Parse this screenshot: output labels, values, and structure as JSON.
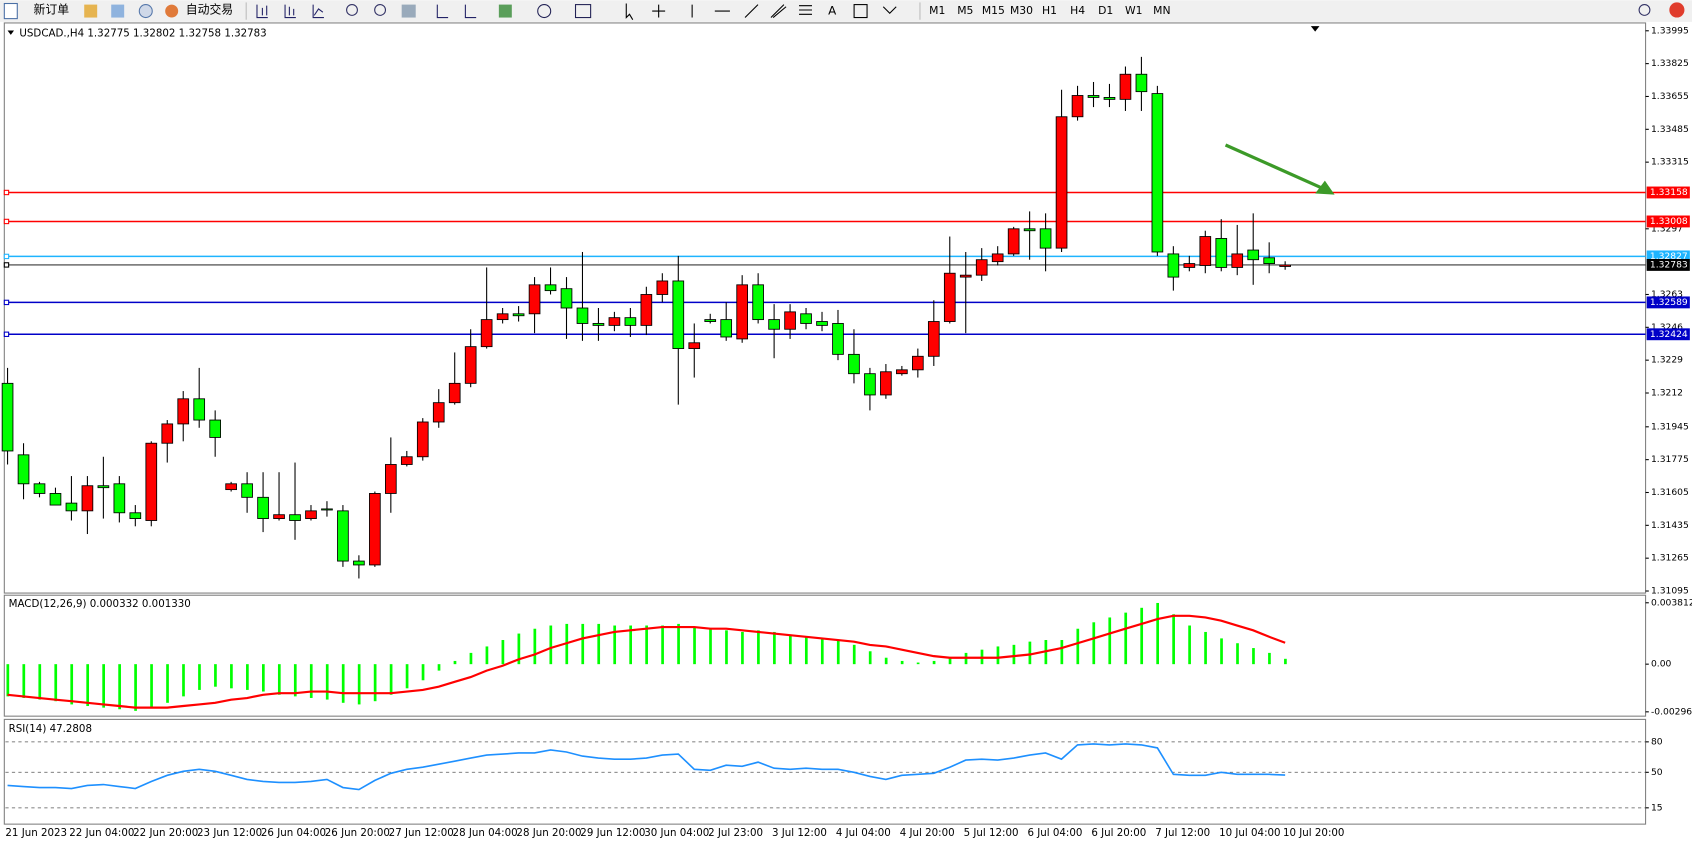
{
  "toolbar": {
    "new_order": "新订单",
    "auto_trading": "自动交易",
    "timeframes": [
      "M1",
      "M5",
      "M15",
      "M30",
      "H1",
      "H4",
      "D1",
      "W1",
      "MN"
    ]
  },
  "chart_data": [
    {
      "type": "candlestick",
      "title": "USDCAD.,H4  1.32775 1.32802 1.32758 1.32783",
      "categories": [
        "21 Jun 2023",
        null,
        null,
        null,
        "22 Jun 04:00",
        null,
        null,
        null,
        "22 Jun 20:00",
        null,
        null,
        null,
        "23 Jun 12:00",
        null,
        null,
        null,
        "26 Jun 04:00",
        null,
        null,
        null,
        "26 Jun 20:00",
        null,
        null,
        null,
        "27 Jun 12:00",
        null,
        null,
        null,
        "28 Jun 04:00",
        null,
        null,
        null,
        "28 Jun 20:00",
        null,
        null,
        null,
        "29 Jun 12:00",
        null,
        null,
        null,
        "30 Jun 04:00",
        null,
        null,
        null,
        "2 Jul 23:00",
        null,
        null,
        null,
        "3 Jul 12:00",
        null,
        null,
        null,
        "4 Jul 04:00",
        null,
        null,
        null,
        "4 Jul 20:00",
        null,
        null,
        null,
        "5 Jul 12:00",
        null,
        null,
        null,
        "6 Jul 04:00",
        null,
        null,
        null,
        "6 Jul 20:00",
        null,
        null,
        null,
        "7 Jul 12:00",
        null,
        null,
        null,
        "10 Jul 04:00",
        null,
        null,
        null,
        "10 Jul 20:00"
      ],
      "open": [
        1.3217,
        1.318,
        1.3165,
        1.316,
        1.3155,
        1.3151,
        1.3164,
        1.3165,
        1.315,
        1.3146,
        1.3186,
        1.3196,
        1.3209,
        1.3198,
        1.3162,
        1.3165,
        1.3158,
        1.3147,
        1.3149,
        1.3147,
        1.3152,
        1.3151,
        1.3125,
        1.3123,
        1.316,
        1.3175,
        1.3179,
        1.3197,
        1.3207,
        1.3217,
        1.3236,
        1.325,
        1.3253,
        1.3253,
        1.3268,
        1.3266,
        1.3256,
        1.3248,
        1.3247,
        1.3251,
        1.3247,
        1.3263,
        1.327,
        1.3235,
        1.325,
        1.325,
        1.324,
        1.3268,
        1.325,
        1.3245,
        1.3253,
        1.3249,
        1.3248,
        1.3232,
        1.3222,
        1.3211,
        1.3222,
        1.3224,
        1.3231,
        1.3249,
        1.3272,
        1.3273,
        1.328,
        1.3284,
        1.3297,
        1.3297,
        1.3287,
        1.3355,
        1.3366,
        1.3365,
        1.3364,
        1.3377,
        1.3367,
        1.3284,
        1.3277,
        1.3278,
        1.3292,
        1.3277,
        1.3286,
        1.3282,
        1.32775
      ],
      "high": [
        1.3225,
        1.3186,
        1.3166,
        1.3163,
        1.3169,
        1.3169,
        1.3179,
        1.3169,
        1.3154,
        1.3187,
        1.3198,
        1.3213,
        1.3225,
        1.3203,
        1.3166,
        1.3171,
        1.3171,
        1.3171,
        1.3176,
        1.3154,
        1.3156,
        1.3154,
        1.3128,
        1.3161,
        1.3189,
        1.3182,
        1.3199,
        1.3214,
        1.3233,
        1.3245,
        1.3277,
        1.3256,
        1.3257,
        1.3272,
        1.3277,
        1.3272,
        1.3285,
        1.3256,
        1.3254,
        1.3256,
        1.3267,
        1.3274,
        1.3283,
        1.3248,
        1.3253,
        1.3259,
        1.3273,
        1.3274,
        1.3258,
        1.3258,
        1.3256,
        1.3254,
        1.3255,
        1.3245,
        1.3225,
        1.3227,
        1.3226,
        1.3235,
        1.326,
        1.3293,
        1.3285,
        1.3287,
        1.3288,
        1.3298,
        1.3306,
        1.3305,
        1.3369,
        1.3371,
        1.3373,
        1.3372,
        1.3381,
        1.3386,
        1.3371,
        1.3288,
        1.3283,
        1.3296,
        1.3302,
        1.3299,
        1.3305,
        1.329,
        1.32802
      ],
      "low": [
        1.3175,
        1.3157,
        1.3158,
        1.3154,
        1.3146,
        1.3139,
        1.3147,
        1.3145,
        1.3143,
        1.3143,
        1.3176,
        1.3187,
        1.3194,
        1.3179,
        1.3161,
        1.315,
        1.314,
        1.3146,
        1.3136,
        1.3146,
        1.3148,
        1.3122,
        1.3116,
        1.3122,
        1.315,
        1.3174,
        1.3177,
        1.3194,
        1.3206,
        1.3215,
        1.3235,
        1.3248,
        1.3249,
        1.3243,
        1.3263,
        1.324,
        1.3239,
        1.3239,
        1.3244,
        1.3241,
        1.3242,
        1.3259,
        1.3206,
        1.322,
        1.3248,
        1.3239,
        1.3238,
        1.3248,
        1.323,
        1.324,
        1.3245,
        1.3244,
        1.3229,
        1.3217,
        1.3203,
        1.3209,
        1.3221,
        1.322,
        1.3226,
        1.3248,
        1.3243,
        1.327,
        1.3278,
        1.3283,
        1.3281,
        1.3275,
        1.3285,
        1.3353,
        1.336,
        1.336,
        1.3358,
        1.3358,
        1.3283,
        1.3265,
        1.3275,
        1.3274,
        1.3275,
        1.3273,
        1.3268,
        1.3274,
        1.32758
      ],
      "close": [
        1.3182,
        1.3165,
        1.316,
        1.3154,
        1.3151,
        1.3164,
        1.3163,
        1.315,
        1.3147,
        1.3186,
        1.3196,
        1.3209,
        1.3198,
        1.3189,
        1.3165,
        1.3158,
        1.3147,
        1.3149,
        1.3146,
        1.3151,
        1.3152,
        1.3125,
        1.3123,
        1.316,
        1.3175,
        1.3179,
        1.3197,
        1.3207,
        1.3217,
        1.3236,
        1.325,
        1.3253,
        1.3252,
        1.3268,
        1.3265,
        1.3256,
        1.3248,
        1.3247,
        1.3251,
        1.3247,
        1.3263,
        1.327,
        1.3235,
        1.3238,
        1.3249,
        1.3241,
        1.3268,
        1.325,
        1.3245,
        1.3254,
        1.3248,
        1.3247,
        1.3232,
        1.3222,
        1.3211,
        1.3223,
        1.3224,
        1.3231,
        1.3249,
        1.3274,
        1.3273,
        1.3281,
        1.3284,
        1.3297,
        1.3296,
        1.3287,
        1.3355,
        1.3366,
        1.3365,
        1.3364,
        1.3377,
        1.3368,
        1.3285,
        1.3272,
        1.3279,
        1.3293,
        1.3277,
        1.3284,
        1.3281,
        1.3279,
        1.32783
      ],
      "up_color": "#ff0000",
      "down_color": "#00ff00",
      "ylim": [
        1.3109,
        1.3403
      ],
      "yticks": [
        1.33995,
        1.33825,
        1.33655,
        1.33485,
        1.33315,
        1.3297,
        1.3263,
        1.3246,
        1.3229,
        1.3212,
        1.31945,
        1.31775,
        1.31605,
        1.31435,
        1.31265,
        1.31095
      ],
      "hlines": [
        {
          "value": 1.33158,
          "color": "#ff0000"
        },
        {
          "value": 1.33008,
          "color": "#ff0000"
        },
        {
          "value": 1.32827,
          "color": "#1eb4ff"
        },
        {
          "value": 1.32783,
          "color": "#000000"
        },
        {
          "value": 1.32589,
          "color": "#0000c8"
        },
        {
          "value": 1.32424,
          "color": "#0000c8"
        }
      ]
    },
    {
      "type": "macd",
      "title": "MACD(12,26,9) 0.000332 0.001330",
      "values": [
        -0.002,
        -0.0021,
        -0.0022,
        -0.0023,
        -0.0025,
        -0.0026,
        -0.0027,
        -0.0028,
        -0.0029,
        -0.0027,
        -0.0024,
        -0.002,
        -0.0016,
        -0.0014,
        -0.0015,
        -0.0016,
        -0.0017,
        -0.0019,
        -0.002,
        -0.0021,
        -0.0022,
        -0.0024,
        -0.0025,
        -0.0023,
        -0.0019,
        -0.0015,
        -0.001,
        -0.0004,
        0.0002,
        0.0007,
        0.0011,
        0.0015,
        0.0019,
        0.0022,
        0.0024,
        0.0025,
        0.0025,
        0.0025,
        0.0024,
        0.0024,
        0.0024,
        0.0024,
        0.0025,
        0.0023,
        0.0022,
        0.0021,
        0.002,
        0.0021,
        0.002,
        0.0018,
        0.0017,
        0.0016,
        0.0015,
        0.0012,
        0.0008,
        0.0004,
        0.0002,
        0.0001,
        0.0002,
        0.0004,
        0.0007,
        0.0009,
        0.0011,
        0.0012,
        0.0014,
        0.0015,
        0.0015,
        0.0022,
        0.0026,
        0.0029,
        0.0032,
        0.0035,
        0.0038,
        0.0031,
        0.0024,
        0.002,
        0.0016,
        0.0013,
        0.001,
        0.0007,
        0.000332
      ],
      "color": "#00ff00",
      "signal": [
        -0.0019,
        -0.002,
        -0.0021,
        -0.0022,
        -0.0023,
        -0.0024,
        -0.0025,
        -0.0026,
        -0.0027,
        -0.0027,
        -0.0027,
        -0.0026,
        -0.0025,
        -0.0024,
        -0.0022,
        -0.0021,
        -0.0019,
        -0.0018,
        -0.0018,
        -0.0017,
        -0.0017,
        -0.0018,
        -0.0018,
        -0.0018,
        -0.0018,
        -0.0017,
        -0.0016,
        -0.0014,
        -0.0011,
        -0.0008,
        -0.0004,
        -0.0001,
        0.0003,
        0.0006,
        0.001,
        0.0013,
        0.0016,
        0.0018,
        0.002,
        0.0021,
        0.0022,
        0.0023,
        0.0023,
        0.0023,
        0.0022,
        0.0022,
        0.0021,
        0.002,
        0.0019,
        0.0018,
        0.0017,
        0.0016,
        0.0015,
        0.0014,
        0.0012,
        0.0011,
        0.0009,
        0.0007,
        0.0005,
        0.0004,
        0.0004,
        0.0004,
        0.0004,
        0.0005,
        0.0006,
        0.0008,
        0.001,
        0.0013,
        0.0016,
        0.0019,
        0.0022,
        0.0025,
        0.0028,
        0.003,
        0.003,
        0.0029,
        0.0027,
        0.0024,
        0.0021,
        0.0017,
        0.00133
      ],
      "signal_color": "#ff0000",
      "ylim": [
        -0.002961,
        0.003812
      ],
      "yticks": [
        0.003812,
        {
          "value": 0,
          "label": "0.00"
        },
        -0.002961
      ]
    },
    {
      "type": "line",
      "title": "RSI(14) 47.2808",
      "values": [
        37,
        36,
        35,
        35,
        34,
        37,
        38,
        36,
        34,
        41,
        47,
        51,
        53,
        51,
        47,
        43,
        41,
        40,
        40,
        41,
        43,
        35,
        33,
        42,
        49,
        53,
        55,
        58,
        61,
        64,
        67,
        68,
        69,
        69,
        72,
        70,
        66,
        64,
        63,
        63,
        64,
        67,
        68,
        53,
        52,
        57,
        56,
        60,
        54,
        53,
        54,
        53,
        53,
        50,
        46,
        43,
        47,
        48,
        49,
        55,
        62,
        63,
        62,
        64,
        67,
        69,
        63,
        77,
        78,
        77,
        78,
        77,
        74,
        48,
        47,
        47,
        50,
        48,
        48,
        48,
        47.2808
      ],
      "color": "#1e90ff",
      "ylim": [
        0,
        100
      ],
      "yticks": [
        80,
        50,
        15
      ],
      "grid": true
    }
  ]
}
